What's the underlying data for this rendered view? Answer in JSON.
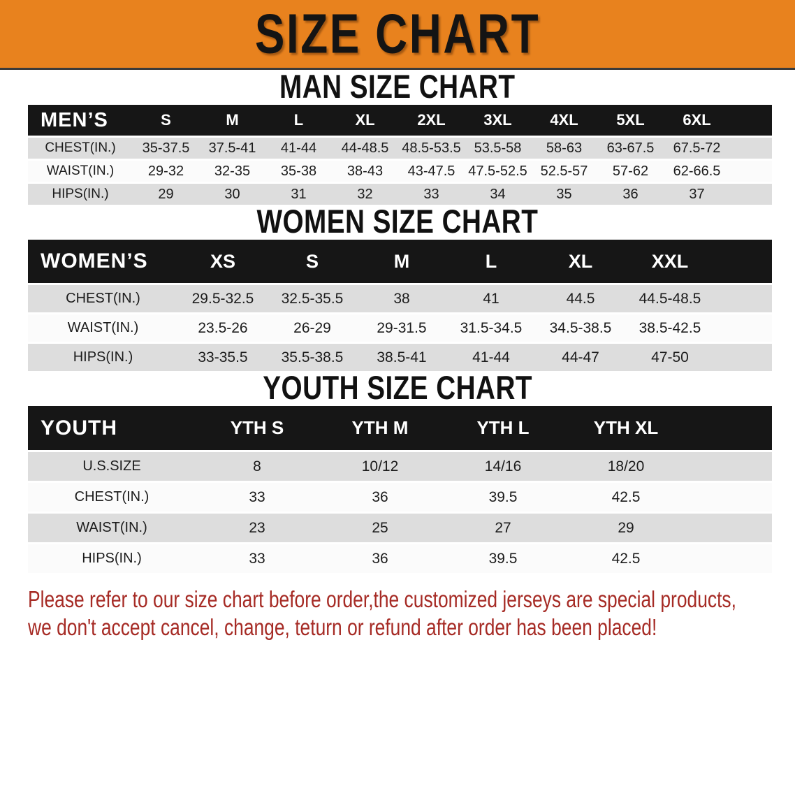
{
  "banner": {
    "title": "SIZE CHART"
  },
  "colors": {
    "banner_bg": "#E8821E",
    "header_bg": "#161616",
    "row_gray": "#DDDDDD",
    "row_white": "#FBFBFB",
    "disclaimer_red": "#A62B25"
  },
  "tables": [
    {
      "id": "mens",
      "heading": "MAN SIZE CHART",
      "header": [
        "MEN’S",
        "S",
        "M",
        "L",
        "XL",
        "2XL",
        "3XL",
        "4XL",
        "5XL",
        "6XL"
      ],
      "rows": [
        [
          "CHEST(IN.)",
          "35-37.5",
          "37.5-41",
          "41-44",
          "44-48.5",
          "48.5-53.5",
          "53.5-58",
          "58-63",
          "63-67.5",
          "67.5-72"
        ],
        [
          "WAIST(IN.)",
          "29-32",
          "32-35",
          "35-38",
          "38-43",
          "43-47.5",
          "47.5-52.5",
          "52.5-57",
          "57-62",
          "62-66.5"
        ],
        [
          "HIPS(IN.)",
          "29",
          "30",
          "31",
          "32",
          "33",
          "34",
          "35",
          "36",
          "37"
        ]
      ]
    },
    {
      "id": "womens",
      "heading": "WOMEN SIZE CHART",
      "header": [
        "WOMEN’S",
        "XS",
        "S",
        "M",
        "L",
        "XL",
        "XXL"
      ],
      "rows": [
        [
          "CHEST(IN.)",
          "29.5-32.5",
          "32.5-35.5",
          "38",
          "41",
          "44.5",
          "44.5-48.5"
        ],
        [
          "WAIST(IN.)",
          "23.5-26",
          "26-29",
          "29-31.5",
          "31.5-34.5",
          "34.5-38.5",
          "38.5-42.5"
        ],
        [
          "HIPS(IN.)",
          "33-35.5",
          "35.5-38.5",
          "38.5-41",
          "41-44",
          "44-47",
          "47-50"
        ]
      ]
    },
    {
      "id": "youth",
      "heading": "YOUTH SIZE CHART",
      "header": [
        "YOUTH",
        "YTH S",
        "YTH M",
        "YTH L",
        "YTH XL"
      ],
      "rows": [
        [
          "U.S.SIZE",
          "8",
          "10/12",
          "14/16",
          "18/20"
        ],
        [
          "CHEST(IN.)",
          "33",
          "36",
          "39.5",
          "42.5"
        ],
        [
          "WAIST(IN.)",
          "23",
          "25",
          "27",
          "29"
        ],
        [
          "HIPS(IN.)",
          "33",
          "36",
          "39.5",
          "42.5"
        ]
      ]
    }
  ],
  "disclaimer": {
    "line1": "Please refer to our size chart before order,the customized jerseys are special products,",
    "line2": "we don't accept cancel, change, teturn or refund after order has been placed!"
  }
}
